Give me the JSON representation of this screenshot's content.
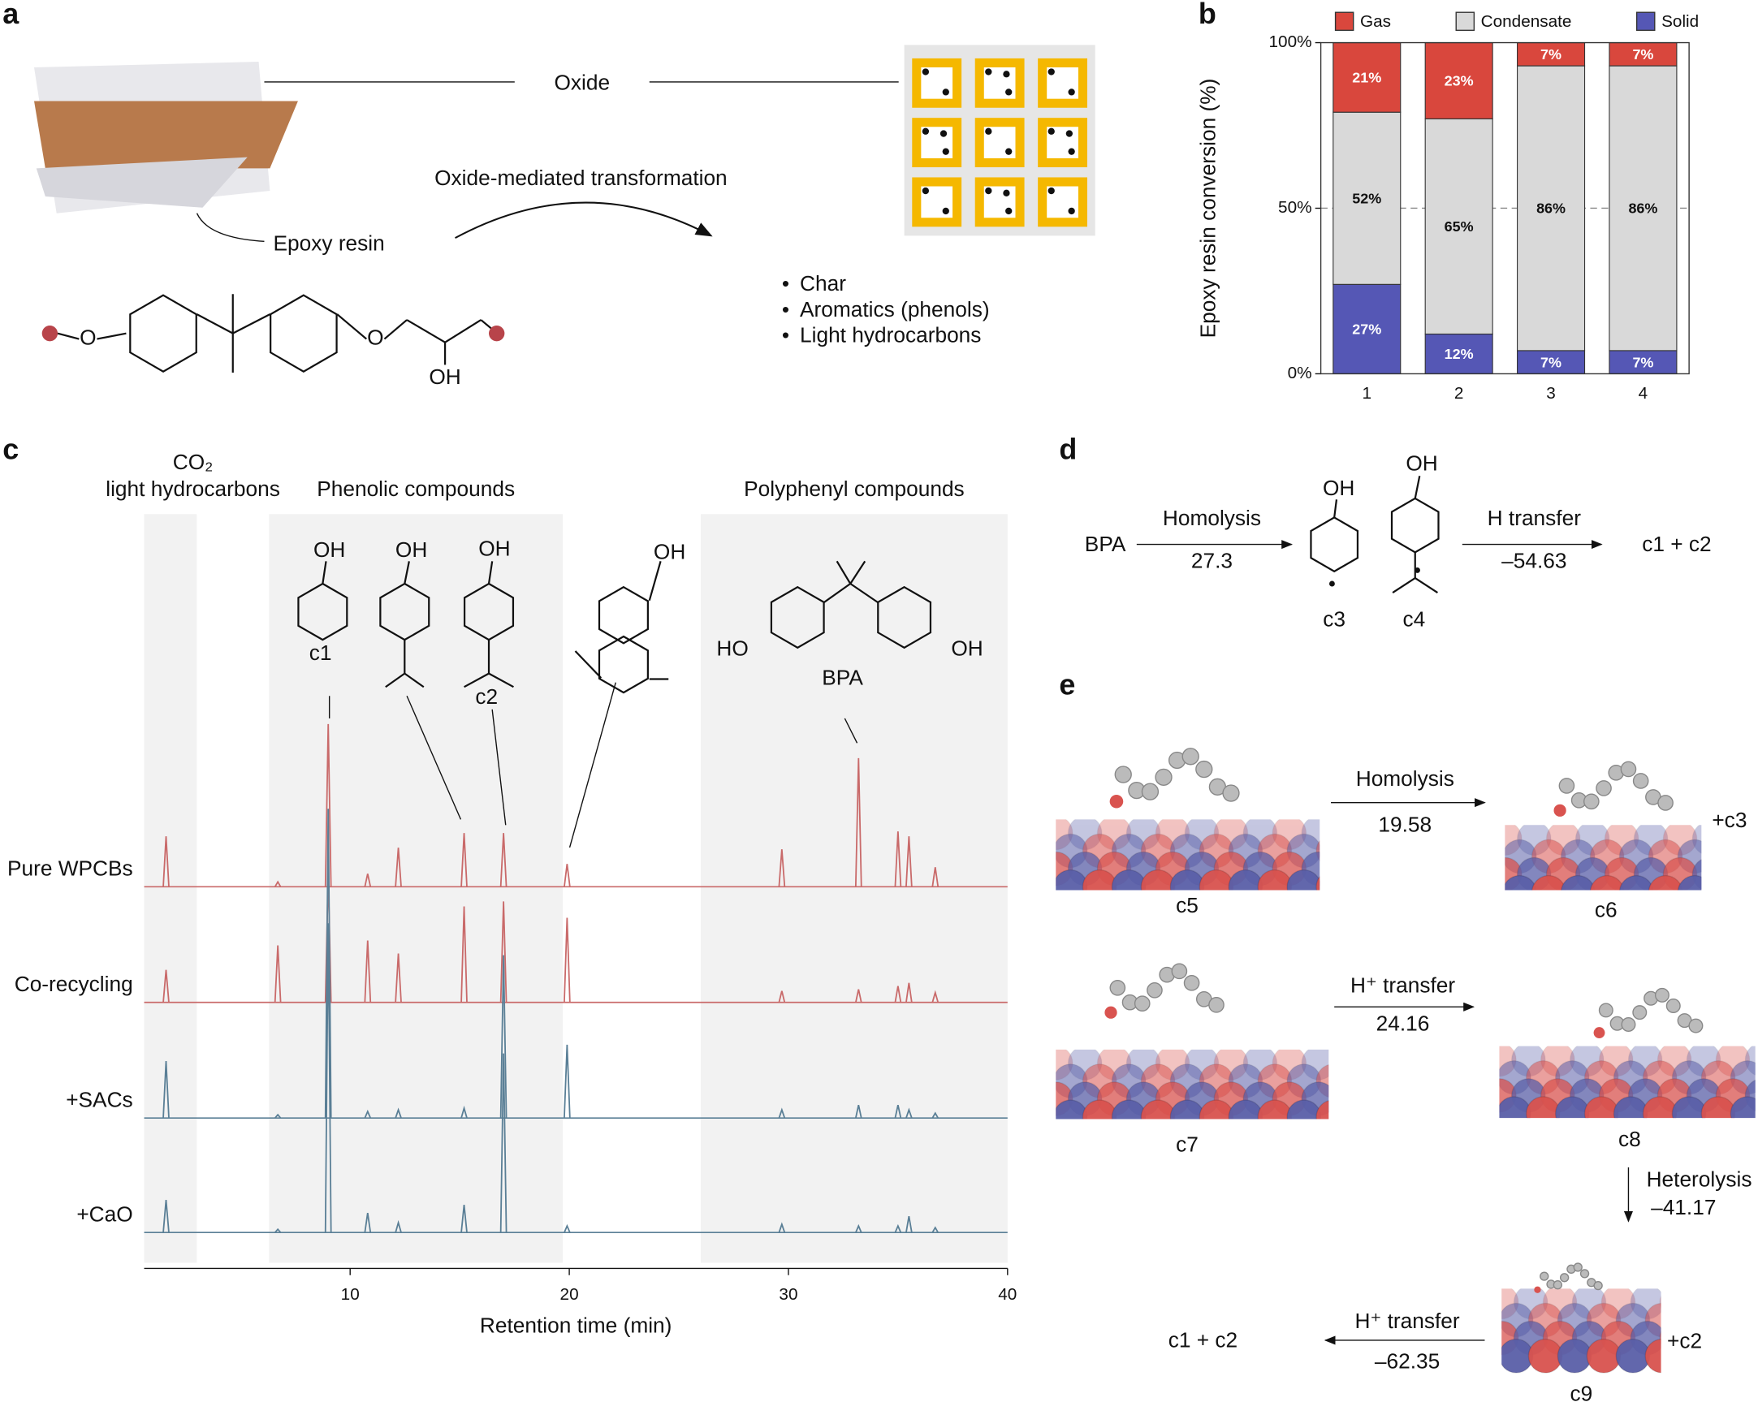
{
  "panel_labels": [
    "a",
    "b",
    "c",
    "d",
    "e"
  ],
  "panel_a": {
    "oxide": "Oxide",
    "transformation": "Oxide-mediated transformation",
    "epoxy_resin": "Epoxy resin",
    "bullet": "•",
    "products": [
      "Char",
      "Aromatics (phenols)",
      "Light hydrocarbons"
    ],
    "atom_o": "O",
    "hydroxyl": "OH"
  },
  "chart_data": [
    {
      "type": "bar",
      "ylabel": "Epoxy resin conversion (%)",
      "categories": [
        "1",
        "2",
        "3",
        "4"
      ],
      "series": [
        {
          "name": "Solid",
          "color": "#5557b5",
          "values": [
            27,
            12,
            7,
            7
          ],
          "value_labels": [
            "27%",
            "12%",
            "7%",
            "7%"
          ]
        },
        {
          "name": "Condensate",
          "color": "#d9d9d9",
          "values": [
            52,
            65,
            86,
            86
          ],
          "value_labels": [
            "52%",
            "65%",
            "86%",
            "86%"
          ]
        },
        {
          "name": "Gas",
          "color": "#d9473d",
          "values": [
            21,
            23,
            7,
            7
          ],
          "value_labels": [
            "21%",
            "23%",
            "7%",
            "7%"
          ]
        }
      ],
      "ylim": [
        0,
        100
      ],
      "yticks": [
        {
          "value": 0,
          "label": "0%"
        },
        {
          "value": 50,
          "label": "50%"
        },
        {
          "value": 100,
          "label": "100%"
        }
      ],
      "grid": true,
      "legend": "top"
    },
    {
      "type": "line",
      "xlabel": "Retention time (min)",
      "xlim": [
        0.6,
        40
      ],
      "xticks": [
        10,
        20,
        30,
        40
      ],
      "regions": [
        {
          "labels": [
            "CO₂",
            "light hydrocarbons"
          ],
          "range": [
            0.6,
            3.0
          ]
        },
        {
          "labels": [
            "Phenolic compounds"
          ],
          "range": [
            6.3,
            19.7
          ]
        },
        {
          "labels": [
            "Polyphenyl compounds"
          ],
          "range": [
            26,
            40
          ]
        }
      ],
      "x": [
        1.6,
        6.7,
        9.0,
        10.8,
        12.2,
        15.2,
        17.0,
        19.9,
        29.7,
        33.2,
        35.0,
        35.5,
        36.7
      ],
      "series": [
        {
          "name": "Pure WPCBs",
          "color": "#c96a6a",
          "values": [
            31,
            3,
            100,
            8,
            24,
            33,
            33,
            14,
            23,
            79,
            34,
            31,
            12
          ]
        },
        {
          "name": "Co-recycling",
          "color": "#c96a6a",
          "values": [
            20,
            35,
            80,
            38,
            30,
            59,
            62,
            52,
            7,
            8,
            10,
            12,
            6
          ]
        },
        {
          "name": "+SACs",
          "color": "#5a7f96",
          "values": [
            35,
            2,
            190,
            4,
            5,
            6,
            100,
            45,
            5,
            8,
            8,
            5,
            3
          ]
        },
        {
          "name": "+CaO",
          "color": "#5a7f96",
          "values": [
            20,
            2,
            190,
            12,
            6,
            17,
            110,
            4,
            5,
            4,
            4,
            10,
            3
          ]
        }
      ]
    }
  ],
  "chem": {
    "oh": "OH",
    "ho": "HO",
    "c1": "c1",
    "c2": "c2",
    "bpa": "BPA"
  },
  "panel_d": {
    "reactant": "BPA",
    "step1": "Homolysis",
    "energy1": "27.3",
    "c3": "c3",
    "c4": "c4",
    "step2": "H transfer",
    "energy2": "–54.63",
    "product": "c1 + c2"
  },
  "panel_e": {
    "step1": "Homolysis",
    "energy1": "19.58",
    "plus_c3": "+c3",
    "c5": "c5",
    "c6": "c6",
    "step2": "H⁺ transfer",
    "energy2": "24.16",
    "c7": "c7",
    "c8": "c8",
    "step3": "Heterolysis",
    "energy3": "–41.17",
    "c9": "c9",
    "plus_c2": "+c2",
    "step4": "H⁺ transfer",
    "energy4": "–62.35",
    "product": "c1 + c2"
  }
}
